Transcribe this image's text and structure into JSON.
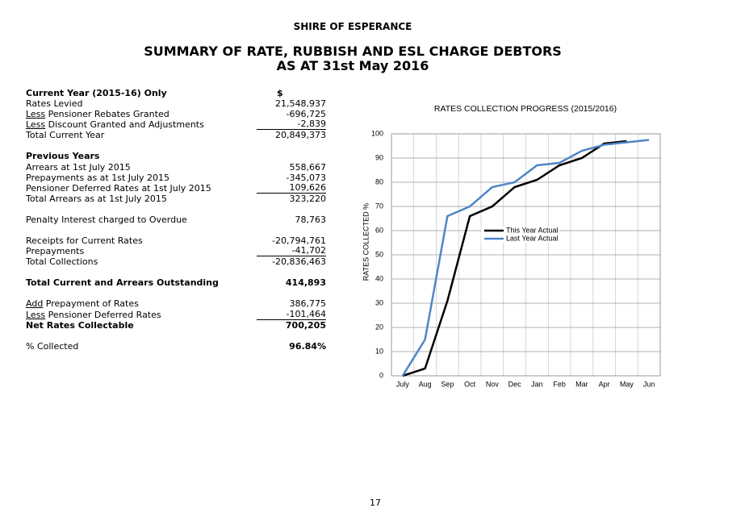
{
  "header": {
    "organisation": "SHIRE OF ESPERANCE",
    "title_lines": [
      "SUMMARY OF RATE, RUBBISH AND ESL CHARGE DEBTORS",
      "AS AT 31st May 2016"
    ]
  },
  "table": {
    "sections": [
      {
        "rows": [
          {
            "label": "Current Year (2015-16) Only",
            "value": "$",
            "bold": true,
            "value_align": "left"
          },
          {
            "label": "Rates Levied",
            "value": "21,548,937"
          },
          {
            "prefix": "Less",
            "label": "Pensioner Rebates Granted",
            "value": "-696,725"
          },
          {
            "prefix": "Less",
            "label": "Discount Granted and Adjustments",
            "value": "-2,839",
            "rule": true
          },
          {
            "label": "Total Current Year",
            "value": "20,849,373"
          }
        ]
      },
      {
        "rows": [
          {
            "label": "Previous Years",
            "bold": true
          },
          {
            "label": "Arrears at 1st July 2015",
            "value": "558,667"
          },
          {
            "label": "Prepayments as at 1st July 2015",
            "value": "-345,073"
          },
          {
            "label": "Pensioner Deferred Rates at 1st July 2015",
            "value": "109,626",
            "rule": true
          },
          {
            "label": "Total Arrears as at 1st July 2015",
            "value": "323,220"
          }
        ]
      },
      {
        "rows": [
          {
            "label": "Penalty Interest charged to Overdue",
            "value": "78,763"
          }
        ]
      },
      {
        "rows": [
          {
            "label": "Receipts for Current Rates",
            "value": "-20,794,761"
          },
          {
            "label": "Prepayments",
            "value": "-41,702",
            "rule": true
          },
          {
            "label": "Total Collections",
            "value": "-20,836,463"
          }
        ]
      },
      {
        "rows": [
          {
            "label": "Total Current and Arrears Outstanding",
            "value": "414,893",
            "bold": true
          }
        ]
      },
      {
        "rows": [
          {
            "prefix": "Add",
            "label": "Prepayment of Rates",
            "value": "386,775"
          },
          {
            "prefix": "Less",
            "label": "Pensioner Deferred Rates",
            "value": "-101,464",
            "rule": true
          },
          {
            "label": "Net Rates Collectable",
            "value": "700,205",
            "bold": true
          }
        ]
      },
      {
        "rows": [
          {
            "label": "% Collected",
            "value": "96.84%",
            "value_bold": true
          }
        ]
      }
    ]
  },
  "chart_data": {
    "type": "line",
    "title": "RATES COLLECTION PROGRESS (2015/2016)",
    "y_label": "RATES COLLECTED %",
    "categories": [
      "July",
      "Aug",
      "Sep",
      "Oct",
      "Nov",
      "Dec",
      "Jan",
      "Feb",
      "Mar",
      "Apr",
      "May",
      "Jun"
    ],
    "series": [
      {
        "name": "This Year Actual",
        "color": "#000000",
        "values": [
          0,
          3,
          31,
          66,
          70,
          78,
          81,
          87,
          90,
          96,
          97,
          null
        ]
      },
      {
        "name": "Last Year Actual",
        "color": "#4f86c6",
        "values": [
          0,
          15,
          66,
          70,
          78,
          80,
          87,
          88,
          93,
          95.5,
          96.5,
          97.5
        ]
      }
    ],
    "ylim": [
      0,
      100
    ],
    "yticks": [
      0,
      10,
      20,
      30,
      40,
      50,
      60,
      70,
      80,
      90,
      100
    ],
    "grid": true,
    "legend": "center-right"
  },
  "page_number": "17"
}
